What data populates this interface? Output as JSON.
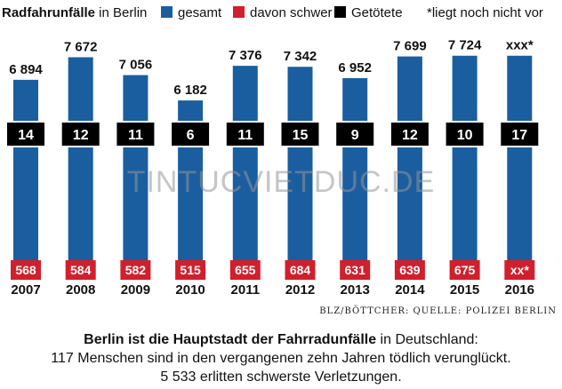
{
  "legend": {
    "title_bold": "Radfahrunfälle",
    "title_rest": " in Berlin",
    "items": [
      {
        "label": "gesamt",
        "color": "#1a5ea0"
      },
      {
        "label": "davon schwer",
        "color": "#d11f2c"
      },
      {
        "label": "Getötete",
        "color": "#000000"
      }
    ],
    "note": "*liegt noch nicht vor"
  },
  "watermark": "TINTUCVIETDUC.DE",
  "source": "BLZ/BÖTTCHER: QUELLE: POLIZEI BERLIN",
  "caption": {
    "line1_bold": "Berlin ist die Hauptstadt der Fahrradunfälle",
    "line1_rest": " in Deutschland:",
    "line2": "117 Menschen sind in den vergangenen zehn Jahren tödlich verunglückt.",
    "line3": "5 533 erlitten schwerste Verletzungen."
  },
  "chart_data": {
    "type": "bar",
    "categories": [
      "2007",
      "2008",
      "2009",
      "2010",
      "2011",
      "2012",
      "2013",
      "2014",
      "2015",
      "2016"
    ],
    "series": [
      {
        "name": "gesamt",
        "values": [
          6894,
          7672,
          7056,
          6182,
          7376,
          7342,
          6952,
          7699,
          7724,
          7724
        ],
        "labels": [
          "6 894",
          "7 672",
          "7 056",
          "6 182",
          "7 376",
          "7 342",
          "6 952",
          "7 699",
          "7 724",
          "xxx*"
        ],
        "color": "#1a5ea0"
      },
      {
        "name": "davon schwer",
        "values": [
          568,
          584,
          582,
          515,
          655,
          684,
          631,
          639,
          675,
          null
        ],
        "labels": [
          "568",
          "584",
          "582",
          "515",
          "655",
          "684",
          "631",
          "639",
          "675",
          "xx*"
        ],
        "color": "#d11f2c"
      },
      {
        "name": "Getötete",
        "values": [
          14,
          12,
          11,
          6,
          11,
          15,
          9,
          12,
          10,
          17
        ],
        "labels": [
          "14",
          "12",
          "11",
          "6",
          "11",
          "15",
          "9",
          "12",
          "10",
          "17"
        ],
        "color": "#000000"
      }
    ],
    "ylim": [
      0,
      8000
    ],
    "grid": false,
    "legend_position": "top"
  }
}
